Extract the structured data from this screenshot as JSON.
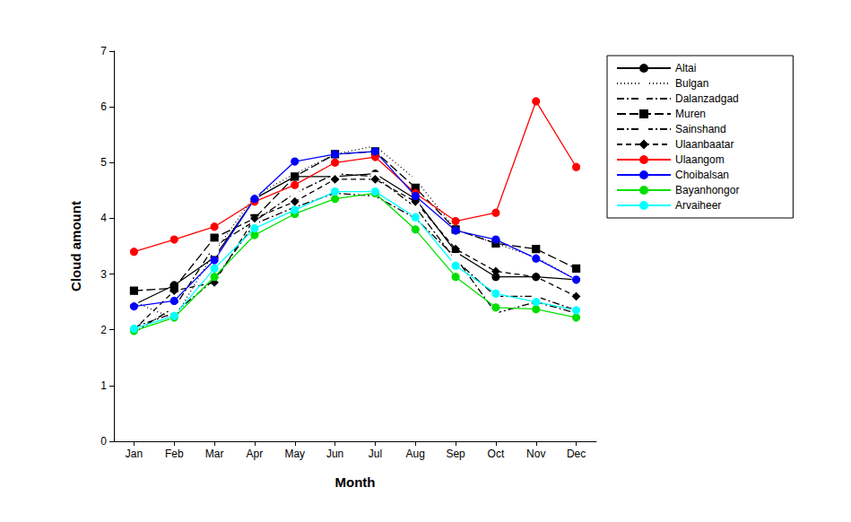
{
  "chart_data": {
    "type": "line",
    "x_label": "Month",
    "y_label": "Cloud amount",
    "categories": [
      "Jan",
      "Feb",
      "Mar",
      "Apr",
      "May",
      "Jun",
      "Jul",
      "Aug",
      "Sep",
      "Oct",
      "Nov",
      "Dec"
    ],
    "ylim": [
      0,
      7
    ],
    "yticks": [
      0,
      1,
      2,
      3,
      4,
      5,
      6,
      7
    ],
    "grid": false,
    "legend": "right",
    "series": [
      {
        "name": "Altai",
        "color": "#000000",
        "marker": "circle",
        "line_style": "solid",
        "values": [
          2.45,
          2.8,
          3.3,
          4.35,
          4.75,
          4.75,
          4.8,
          4.35,
          3.4,
          2.95,
          2.95,
          2.9
        ]
      },
      {
        "name": "Bulgan",
        "color": "#000000",
        "marker": "open_circle",
        "line_style": "dotted",
        "values": [
          2.5,
          2.2,
          3.4,
          4.4,
          4.8,
          5.15,
          5.3,
          4.7,
          3.8,
          3.55,
          3.3,
          2.9
        ]
      },
      {
        "name": "Dalanzadgad",
        "color": "#000000",
        "marker": "open_triangle_down",
        "line_style": "dashdot",
        "values": [
          2.05,
          2.3,
          2.9,
          3.9,
          4.2,
          4.45,
          4.4,
          4.0,
          3.3,
          2.3,
          2.5,
          2.3
        ]
      },
      {
        "name": "Muren",
        "color": "#000000",
        "marker": "square",
        "line_style": "longdash",
        "values": [
          2.7,
          2.75,
          3.65,
          4.0,
          4.75,
          5.15,
          5.2,
          4.55,
          3.8,
          3.55,
          3.45,
          3.1
        ]
      },
      {
        "name": "Sainshand",
        "color": "#000000",
        "marker": "open_square",
        "line_style": "dashdot",
        "values": [
          1.95,
          2.4,
          3.5,
          3.95,
          4.45,
          4.8,
          4.75,
          4.2,
          3.25,
          2.6,
          2.6,
          2.35
        ]
      },
      {
        "name": "Ulaanbaatar",
        "color": "#000000",
        "marker": "diamond",
        "line_style": "dashed",
        "values": [
          2.0,
          2.7,
          2.85,
          4.0,
          4.3,
          4.7,
          4.7,
          4.3,
          3.45,
          3.05,
          2.95,
          2.6
        ]
      },
      {
        "name": "Ulaangom",
        "color": "#ff0000",
        "marker": "circle",
        "line_style": "solid",
        "values": [
          3.4,
          3.62,
          3.85,
          4.3,
          4.6,
          5.0,
          5.1,
          4.45,
          3.95,
          4.1,
          6.1,
          4.92
        ]
      },
      {
        "name": "Choibalsan",
        "color": "#0000ff",
        "marker": "circle",
        "line_style": "solid",
        "values": [
          2.42,
          2.52,
          3.25,
          4.35,
          5.02,
          5.15,
          5.2,
          4.4,
          3.78,
          3.62,
          3.28,
          2.9
        ]
      },
      {
        "name": "Bayanhongor",
        "color": "#00e000",
        "marker": "circle",
        "line_style": "solid",
        "values": [
          1.98,
          2.22,
          2.95,
          3.7,
          4.08,
          4.35,
          4.45,
          3.8,
          2.95,
          2.4,
          2.37,
          2.22
        ]
      },
      {
        "name": "Arvaiheer",
        "color": "#00ffff",
        "marker": "circle",
        "line_style": "solid",
        "values": [
          2.02,
          2.25,
          3.1,
          3.82,
          4.15,
          4.48,
          4.48,
          4.02,
          3.15,
          2.65,
          2.5,
          2.35
        ]
      }
    ]
  }
}
